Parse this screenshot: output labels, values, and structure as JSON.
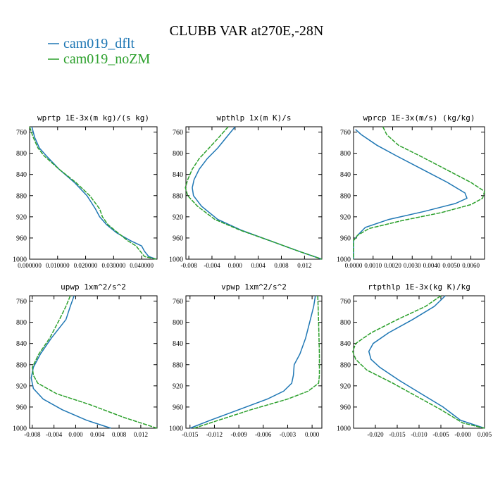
{
  "figure": {
    "title": "CLUBB VAR at270E,-28N",
    "legend": [
      {
        "label": "cam019_dflt",
        "color": "#1f77b4"
      },
      {
        "label": "cam019_noZM",
        "color": "#2ca02c"
      }
    ]
  },
  "chart_data": [
    {
      "type": "line",
      "title": "wprtp   1E-3x(m kg)/(s kg)",
      "xlabel": "",
      "ylabel": "",
      "xlim": [
        0.0,
        0.0455
      ],
      "ylim": [
        1000,
        750
      ],
      "y_inverted": true,
      "xticks": [
        0.0,
        0.01,
        0.02,
        0.03,
        0.04
      ],
      "xtick_labels": [
        "0.000000",
        "0.010000",
        "0.020000",
        "0.030000",
        "0.040000"
      ],
      "yticks": [
        760,
        800,
        840,
        880,
        920,
        960,
        1000
      ],
      "series": [
        {
          "name": "cam019_dflt",
          "color": "#1f77b4",
          "dashed": false,
          "points": [
            [
              0.0008,
              750
            ],
            [
              0.0018,
              770
            ],
            [
              0.0035,
              790
            ],
            [
              0.006,
              805
            ],
            [
              0.0105,
              830
            ],
            [
              0.016,
              855
            ],
            [
              0.0205,
              880
            ],
            [
              0.0235,
              905
            ],
            [
              0.025,
              920
            ],
            [
              0.0275,
              935
            ],
            [
              0.031,
              950
            ],
            [
              0.036,
              965
            ],
            [
              0.04,
              975
            ],
            [
              0.041,
              985
            ],
            [
              0.0425,
              995
            ],
            [
              0.0452,
              1000
            ]
          ]
        },
        {
          "name": "cam019_noZM",
          "color": "#2ca02c",
          "dashed": true,
          "points": [
            [
              0.0,
              750
            ],
            [
              0.0013,
              770
            ],
            [
              0.003,
              790
            ],
            [
              0.0052,
              805
            ],
            [
              0.0105,
              830
            ],
            [
              0.0165,
              855
            ],
            [
              0.0215,
              880
            ],
            [
              0.025,
              905
            ],
            [
              0.026,
              920
            ],
            [
              0.028,
              935
            ],
            [
              0.0315,
              950
            ],
            [
              0.035,
              965
            ],
            [
              0.038,
              975
            ],
            [
              0.0395,
              985
            ],
            [
              0.041,
              995
            ],
            [
              0.0452,
              1000
            ]
          ]
        }
      ]
    },
    {
      "type": "line",
      "title": "wpthlp   1x(m K)/s",
      "xlabel": "",
      "ylabel": "",
      "xlim": [
        -0.0085,
        0.015
      ],
      "ylim": [
        1000,
        750
      ],
      "y_inverted": true,
      "xticks": [
        -0.008,
        -0.004,
        0.0,
        0.004,
        0.008,
        0.012
      ],
      "xtick_labels": [
        "-0.008",
        "-0.004",
        "0.000",
        "0.004",
        "0.008",
        "0.012"
      ],
      "yticks": [
        760,
        800,
        840,
        880,
        920,
        960,
        1000
      ],
      "series": [
        {
          "name": "cam019_dflt",
          "color": "#1f77b4",
          "dashed": false,
          "points": [
            [
              0.0,
              750
            ],
            [
              -0.0015,
              770
            ],
            [
              -0.003,
              790
            ],
            [
              -0.0048,
              810
            ],
            [
              -0.0062,
              830
            ],
            [
              -0.0071,
              850
            ],
            [
              -0.0074,
              865
            ],
            [
              -0.0072,
              880
            ],
            [
              -0.0058,
              900
            ],
            [
              -0.003,
              925
            ],
            [
              0.001,
              945
            ],
            [
              0.006,
              965
            ],
            [
              0.011,
              985
            ],
            [
              0.015,
              1000
            ]
          ]
        },
        {
          "name": "cam019_noZM",
          "color": "#2ca02c",
          "dashed": true,
          "points": [
            [
              -0.0012,
              750
            ],
            [
              -0.0028,
              770
            ],
            [
              -0.0045,
              790
            ],
            [
              -0.0062,
              810
            ],
            [
              -0.0074,
              830
            ],
            [
              -0.0082,
              850
            ],
            [
              -0.0086,
              865
            ],
            [
              -0.0082,
              880
            ],
            [
              -0.0065,
              900
            ],
            [
              -0.0035,
              925
            ],
            [
              0.0008,
              945
            ],
            [
              0.006,
              965
            ],
            [
              0.011,
              985
            ],
            [
              0.015,
              1000
            ]
          ]
        }
      ]
    },
    {
      "type": "line",
      "title": "wprcp   1E-3x(m/s) (kg/kg)",
      "xlabel": "",
      "ylabel": "",
      "xlim": [
        0.0,
        0.0067
      ],
      "ylim": [
        1000,
        750
      ],
      "y_inverted": true,
      "xticks": [
        0.0,
        0.001,
        0.002,
        0.003,
        0.004,
        0.005,
        0.006
      ],
      "xtick_labels": [
        "0.0000",
        "0.0010",
        "0.0020",
        "0.0030",
        "0.0040",
        "0.0050",
        "0.0060"
      ],
      "yticks": [
        760,
        800,
        840,
        880,
        920,
        960,
        1000
      ],
      "series": [
        {
          "name": "cam019_dflt",
          "color": "#1f77b4",
          "dashed": false,
          "points": [
            [
              0.0001,
              755
            ],
            [
              0.0004,
              765
            ],
            [
              0.0012,
              785
            ],
            [
              0.0022,
              805
            ],
            [
              0.0035,
              830
            ],
            [
              0.0048,
              855
            ],
            [
              0.0057,
              875
            ],
            [
              0.0058,
              885
            ],
            [
              0.0052,
              895
            ],
            [
              0.0036,
              910
            ],
            [
              0.0018,
              925
            ],
            [
              0.0006,
              940
            ],
            [
              0.0002,
              955
            ],
            [
              0.0,
              965
            ],
            [
              0.0,
              1000
            ]
          ]
        },
        {
          "name": "cam019_noZM",
          "color": "#2ca02c",
          "dashed": true,
          "points": [
            [
              0.0015,
              750
            ],
            [
              0.0017,
              765
            ],
            [
              0.0023,
              785
            ],
            [
              0.0034,
              805
            ],
            [
              0.0047,
              830
            ],
            [
              0.006,
              855
            ],
            [
              0.0067,
              872
            ],
            [
              0.0066,
              885
            ],
            [
              0.006,
              897
            ],
            [
              0.0045,
              912
            ],
            [
              0.0025,
              927
            ],
            [
              0.0008,
              942
            ],
            [
              0.0002,
              955
            ],
            [
              0.0,
              965
            ],
            [
              0.0,
              1000
            ]
          ]
        }
      ]
    },
    {
      "type": "line",
      "title": "upwp   1xm^2/s^2",
      "xlabel": "",
      "ylabel": "",
      "xlim": [
        -0.0085,
        0.015
      ],
      "ylim": [
        1000,
        750
      ],
      "y_inverted": true,
      "xticks": [
        -0.008,
        -0.004,
        0.0,
        0.004,
        0.008,
        0.012
      ],
      "xtick_labels": [
        "-0.008",
        "-0.004",
        "0.000",
        "0.004",
        "0.008",
        "0.012"
      ],
      "yticks": [
        760,
        800,
        840,
        880,
        920,
        960,
        1000
      ],
      "series": [
        {
          "name": "cam019_dflt",
          "color": "#1f77b4",
          "dashed": false,
          "points": [
            [
              -0.0003,
              750
            ],
            [
              -0.001,
              770
            ],
            [
              -0.0018,
              795
            ],
            [
              -0.0045,
              830
            ],
            [
              -0.0065,
              860
            ],
            [
              -0.0078,
              885
            ],
            [
              -0.0082,
              905
            ],
            [
              -0.0078,
              925
            ],
            [
              -0.006,
              945
            ],
            [
              -0.0025,
              965
            ],
            [
              0.002,
              985
            ],
            [
              0.0065,
              1000
            ]
          ]
        },
        {
          "name": "cam019_noZM",
          "color": "#2ca02c",
          "dashed": true,
          "points": [
            [
              -0.001,
              750
            ],
            [
              -0.0018,
              770
            ],
            [
              -0.003,
              795
            ],
            [
              -0.0048,
              830
            ],
            [
              -0.0068,
              860
            ],
            [
              -0.008,
              885
            ],
            [
              -0.0078,
              900
            ],
            [
              -0.007,
              915
            ],
            [
              -0.0035,
              935
            ],
            [
              0.0025,
              955
            ],
            [
              0.009,
              980
            ],
            [
              0.015,
              1000
            ]
          ]
        }
      ]
    },
    {
      "type": "line",
      "title": "vpwp   1xm^2/s^2",
      "xlabel": "",
      "ylabel": "",
      "xlim": [
        -0.0155,
        0.0012
      ],
      "ylim": [
        1000,
        750
      ],
      "y_inverted": true,
      "xticks": [
        -0.015,
        -0.012,
        -0.009,
        -0.006,
        -0.003,
        0.0
      ],
      "xtick_labels": [
        "-0.015",
        "-0.012",
        "-0.009",
        "-0.006",
        "-0.003",
        "0.000"
      ],
      "yticks": [
        760,
        800,
        840,
        880,
        920,
        960,
        1000
      ],
      "series": [
        {
          "name": "cam019_dflt",
          "color": "#1f77b4",
          "dashed": false,
          "points": [
            [
              0.0004,
              750
            ],
            [
              0.0002,
              770
            ],
            [
              -0.0003,
              800
            ],
            [
              -0.0008,
              830
            ],
            [
              -0.0015,
              860
            ],
            [
              -0.0022,
              880
            ],
            [
              -0.0023,
              900
            ],
            [
              -0.0025,
              915
            ],
            [
              -0.0035,
              930
            ],
            [
              -0.0055,
              945
            ],
            [
              -0.009,
              965
            ],
            [
              -0.0125,
              985
            ],
            [
              -0.015,
              1000
            ]
          ]
        },
        {
          "name": "cam019_noZM",
          "color": "#2ca02c",
          "dashed": true,
          "points": [
            [
              0.0007,
              750
            ],
            [
              0.0008,
              800
            ],
            [
              0.0009,
              860
            ],
            [
              0.0009,
              900
            ],
            [
              0.0008,
              915
            ],
            [
              -0.0005,
              930
            ],
            [
              -0.003,
              945
            ],
            [
              -0.0075,
              965
            ],
            [
              -0.0115,
              985
            ],
            [
              -0.0145,
              1000
            ]
          ]
        }
      ]
    },
    {
      "type": "line",
      "title": "rtpthlp   1E-3x(kg K)/kg",
      "xlabel": "",
      "ylabel": "",
      "xlim": [
        -0.025,
        0.005
      ],
      "ylim": [
        1000,
        750
      ],
      "y_inverted": true,
      "xticks": [
        -0.02,
        -0.015,
        -0.01,
        -0.005,
        0.0,
        0.005
      ],
      "xtick_labels": [
        "-0.020",
        "-0.015",
        "-0.010",
        "-0.005",
        "-0.000",
        "0.005"
      ],
      "yticks": [
        760,
        800,
        840,
        880,
        920,
        960,
        1000
      ],
      "series": [
        {
          "name": "cam019_dflt",
          "color": "#1f77b4",
          "dashed": false,
          "points": [
            [
              -0.004,
              750
            ],
            [
              -0.0065,
              770
            ],
            [
              -0.0115,
              795
            ],
            [
              -0.017,
              820
            ],
            [
              -0.0205,
              840
            ],
            [
              -0.0215,
              855
            ],
            [
              -0.021,
              870
            ],
            [
              -0.019,
              885
            ],
            [
              -0.0145,
              910
            ],
            [
              -0.0095,
              935
            ],
            [
              -0.0045,
              960
            ],
            [
              -0.0005,
              985
            ],
            [
              0.005,
              1000
            ]
          ]
        },
        {
          "name": "cam019_noZM",
          "color": "#2ca02c",
          "dashed": true,
          "points": [
            [
              -0.005,
              750
            ],
            [
              -0.0085,
              770
            ],
            [
              -0.015,
              795
            ],
            [
              -0.021,
              820
            ],
            [
              -0.0245,
              840
            ],
            [
              -0.0252,
              855
            ],
            [
              -0.0245,
              870
            ],
            [
              -0.022,
              890
            ],
            [
              -0.016,
              915
            ],
            [
              -0.0105,
              940
            ],
            [
              -0.005,
              965
            ],
            [
              0.0,
              990
            ],
            [
              0.005,
              1000
            ]
          ]
        }
      ]
    }
  ]
}
